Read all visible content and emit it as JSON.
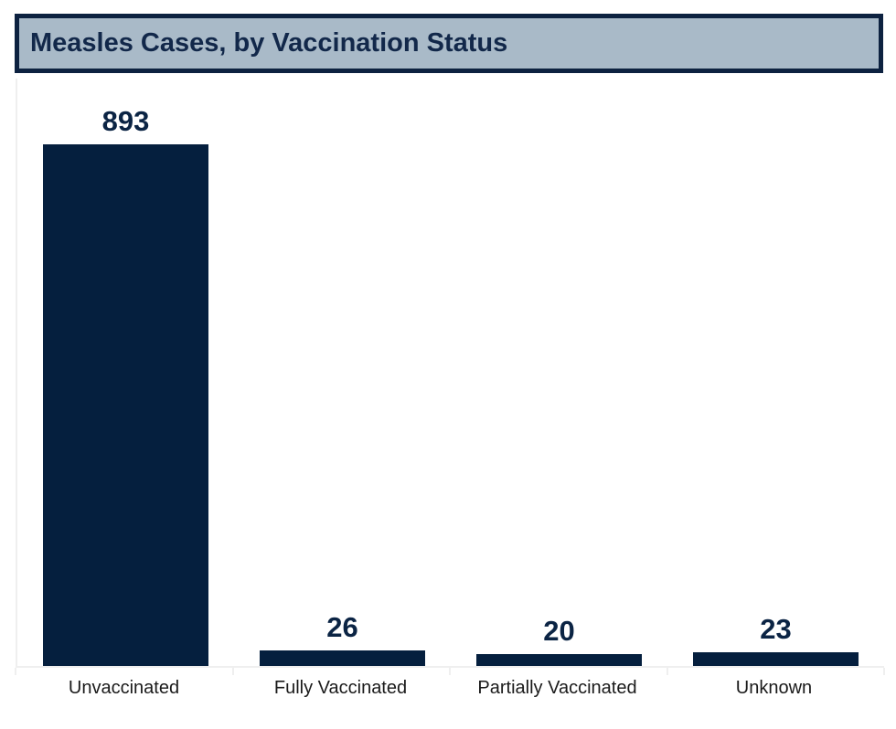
{
  "header": {
    "title": "Measles Cases, by Vaccination Status"
  },
  "chart_data": {
    "type": "bar",
    "title": "Measles Cases, by Vaccination Status",
    "categories": [
      "Unvaccinated",
      "Fully Vaccinated",
      "Partially Vaccinated",
      "Unknown"
    ],
    "values": [
      893,
      26,
      20,
      23
    ],
    "xlabel": "",
    "ylabel": "",
    "ylim": [
      0,
      1000
    ],
    "grid": false,
    "legend": false,
    "value_labels_shown": true,
    "bar_color": "#051F3E"
  },
  "colors": {
    "page_background": "#FFFFFF",
    "header_background": "#A9BAC8",
    "header_border": "#0D2240",
    "title_text": "#12284A",
    "bar_fill": "#051F3E",
    "value_label_text": "#0B2444",
    "category_label_text": "#1A1A1A",
    "axis_line": "#EFEFEF"
  }
}
